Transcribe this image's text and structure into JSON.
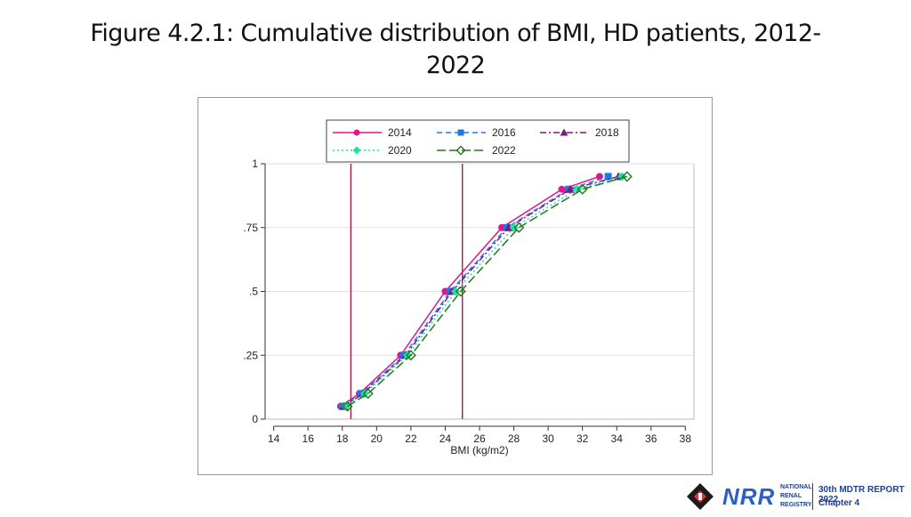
{
  "title": {
    "line1": "Figure 4.2.1: Cumulative distribution of BMI, HD patients, 2012-",
    "line2": "2022"
  },
  "chart_data": {
    "type": "line",
    "title": "Figure 4.2.1: Cumulative distribution of BMI, HD patients, 2012-2022",
    "xlabel": "BMI (kg/m2)",
    "ylabel": "",
    "xlim": [
      13.5,
      38.5
    ],
    "ylim": [
      0,
      1
    ],
    "xticks": [
      14,
      16,
      18,
      20,
      22,
      24,
      26,
      28,
      30,
      32,
      34,
      36,
      38
    ],
    "yticks": [
      {
        "value": 0,
        "label": "0"
      },
      {
        "value": 0.25,
        "label": ".25"
      },
      {
        "value": 0.5,
        "label": ".5"
      },
      {
        "value": 0.75,
        "label": ".75"
      },
      {
        "value": 1,
        "label": "1"
      }
    ],
    "grid": true,
    "vlines": [
      18.5,
      25
    ],
    "vline_color": "#b0154f",
    "legend_position": "top",
    "series": [
      {
        "name": "2014",
        "color": "#e0168a",
        "dash": "solid",
        "marker": "circle",
        "x": [
          17.9,
          19.0,
          21.4,
          24.0,
          27.3,
          30.8,
          33.0
        ],
        "y": [
          0.05,
          0.1,
          0.25,
          0.5,
          0.75,
          0.9,
          0.95
        ]
      },
      {
        "name": "2016",
        "color": "#1f77e8",
        "dash": "dash",
        "marker": "square",
        "x": [
          18.0,
          19.1,
          21.6,
          24.3,
          27.6,
          31.2,
          33.5
        ],
        "y": [
          0.05,
          0.1,
          0.25,
          0.5,
          0.75,
          0.9,
          0.95
        ]
      },
      {
        "name": "2018",
        "color": "#7a1a80",
        "dash": "dashdot",
        "marker": "triangle",
        "x": [
          18.1,
          19.2,
          21.7,
          24.4,
          27.7,
          31.3,
          34.1
        ],
        "y": [
          0.05,
          0.1,
          0.25,
          0.5,
          0.75,
          0.9,
          0.95
        ]
      },
      {
        "name": "2020",
        "color": "#22e0a0",
        "dash": "dot",
        "marker": "diamond",
        "x": [
          18.2,
          19.3,
          21.8,
          24.6,
          28.0,
          31.7,
          34.3
        ],
        "y": [
          0.05,
          0.1,
          0.25,
          0.5,
          0.75,
          0.9,
          0.95
        ]
      },
      {
        "name": "2022",
        "color": "#1c7a1c",
        "dash": "longdash",
        "marker": "diamond-open",
        "x": [
          18.3,
          19.5,
          22.0,
          24.9,
          28.3,
          32.0,
          34.6
        ],
        "y": [
          0.05,
          0.1,
          0.25,
          0.5,
          0.75,
          0.9,
          0.95
        ]
      }
    ]
  },
  "footer": {
    "brand": "NRR",
    "org_lines": [
      "NATIONAL",
      "RENAL",
      "REGISTRY"
    ],
    "report": "30th MDTR REPORT 2022",
    "chapter": "Chapter 4"
  }
}
